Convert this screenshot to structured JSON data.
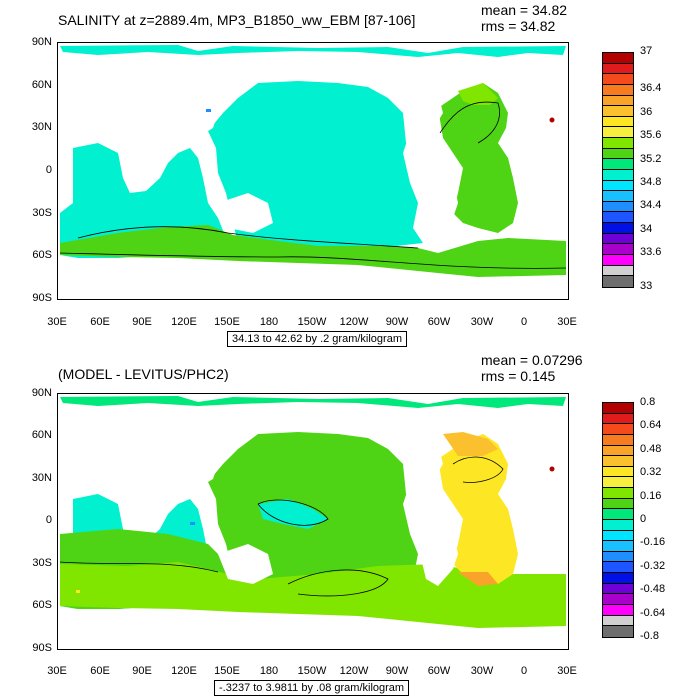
{
  "panel1": {
    "title": "SALINITY at z=2889.4m, MP3_B1850_ww_EBM [87-106]",
    "mean": "mean = 34.82",
    "rms": "rms = 34.82",
    "info": "34.13 to 42.62 by .2 gram/kilogram",
    "colorbar": {
      "labels": [
        "37",
        "36.4",
        "36",
        "35.6",
        "35.2",
        "34.8",
        "34.4",
        "34",
        "33.6",
        "33"
      ],
      "colors": [
        "#b30000",
        "#e01b1b",
        "#f54a1c",
        "#f77c1f",
        "#f9a32a",
        "#fbc02d",
        "#fde725",
        "#f6ef40",
        "#80e600",
        "#4ed414",
        "#00e87a",
        "#00f0d0",
        "#00e4ff",
        "#19c0ff",
        "#1f8fff",
        "#1f55ff",
        "#0010e6",
        "#6f00d8",
        "#a900cc",
        "#ff00ff",
        "#d0d0d0",
        "#6e6e6e"
      ]
    }
  },
  "panel2": {
    "title": "(MODEL - LEVITUS/PHC2)",
    "mean": "mean = 0.07296",
    "rms": "rms = 0.145",
    "info": "-.3237 to 3.9811 by .08 gram/kilogram",
    "colorbar": {
      "labels": [
        "0.8",
        "0.64",
        "0.48",
        "0.32",
        "0.16",
        "0",
        "-0.16",
        "-0.32",
        "-0.48",
        "-0.64",
        "-0.8"
      ],
      "colors": [
        "#b30000",
        "#e01b1b",
        "#f54a1c",
        "#f77c1f",
        "#f9a32a",
        "#fbc02d",
        "#fde725",
        "#f6ef40",
        "#80e600",
        "#4ed414",
        "#00e87a",
        "#00f0d0",
        "#00e4ff",
        "#19c0ff",
        "#1f8fff",
        "#1f55ff",
        "#0010e6",
        "#6f00d8",
        "#a900cc",
        "#ff00ff",
        "#d0d0d0",
        "#6e6e6e"
      ]
    }
  },
  "axes": {
    "ylabels": [
      "90N",
      "60N",
      "30N",
      "0",
      "30S",
      "60S",
      "90S"
    ],
    "xlabels": [
      "30E",
      "60E",
      "90E",
      "120E",
      "150E",
      "180",
      "150W",
      "120W",
      "90W",
      "60W",
      "30W",
      "0",
      "30E"
    ]
  }
}
